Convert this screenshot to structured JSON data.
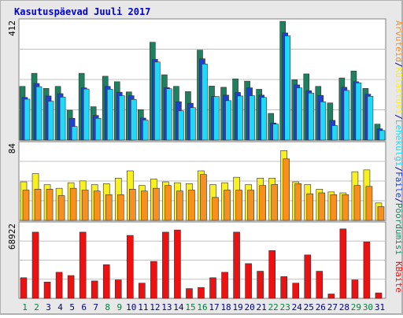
{
  "chart_data": {
    "type": "bar",
    "title": "Kasutuspäevad Juuli 2017",
    "categories": [
      "1",
      "2",
      "3",
      "4",
      "5",
      "6",
      "7",
      "8",
      "9",
      "10",
      "11",
      "12",
      "13",
      "14",
      "15",
      "16",
      "17",
      "18",
      "19",
      "20",
      "21",
      "22",
      "23",
      "24",
      "25",
      "26",
      "27",
      "28",
      "29",
      "30",
      "31"
    ],
    "weekend_days": [
      "1",
      "2",
      "8",
      "9",
      "15",
      "16",
      "22",
      "23",
      "29",
      "30"
    ],
    "panels": [
      {
        "scale_label": "412",
        "ymax": 412,
        "series": [
          {
            "name": "Pöördumisi",
            "color": "#1f7f5f",
            "values": [
              185,
              230,
              178,
              185,
              103,
              230,
              115,
              220,
              201,
              166,
              105,
              337,
              225,
              185,
              167,
              310,
              186,
              182,
              211,
              203,
              175,
              92,
              409,
              208,
              228,
              185,
              128,
              214,
              238,
              178,
              55
            ]
          },
          {
            "name": "Faile",
            "color": "#2040d0",
            "values": [
              147,
              195,
              152,
              160,
              75,
              180,
              85,
              185,
              165,
              153,
              76,
              278,
              181,
              132,
              127,
              280,
              150,
              155,
              164,
              180,
              155,
              59,
              369,
              190,
              170,
              154,
              68,
              182,
              201,
              158,
              39
            ]
          },
          {
            "name": "Lehekülgi",
            "color": "#20d8f8",
            "values": [
              141,
              184,
              134,
              148,
              47,
              176,
              75,
              175,
              153,
              140,
              69,
              269,
              177,
              101,
              112,
              262,
              150,
              136,
              152,
              153,
              147,
              55,
              359,
              180,
              162,
              132,
              50,
              171,
              197,
              151,
              33
            ]
          }
        ]
      },
      {
        "scale_label": "84",
        "ymax": 84,
        "series": [
          {
            "name": "Külastusi",
            "color": "#f8f020",
            "values": [
              42,
              51,
              39,
              35,
              41,
              43,
              39,
              40,
              46,
              54,
              38,
              45,
              42,
              41,
              40,
              54,
              39,
              41,
              47,
              39,
              46,
              46,
              76,
              42,
              39,
              34,
              31,
              30,
              53,
              55,
              19
            ]
          },
          {
            "name": "Arvuteid",
            "color": "#f89020",
            "values": [
              33,
              34,
              34,
              27,
              35,
              33,
              32,
              28,
              28,
              34,
              32,
              35,
              38,
              32,
              33,
              50,
              25,
              33,
              33,
              33,
              38,
              39,
              67,
              40,
              29,
              30,
              28,
              28,
              38,
              37,
              15
            ]
          }
        ]
      },
      {
        "scale_label": "68922",
        "ymax": 68922,
        "series": [
          {
            "name": "KBaite",
            "color": "#ee1111",
            "values": [
              19000,
              61000,
              15000,
              24000,
              21000,
              61000,
              16000,
              31000,
              17000,
              58000,
              14000,
              34000,
              61000,
              63000,
              9000,
              10000,
              19000,
              24000,
              61000,
              32000,
              25000,
              44000,
              20000,
              14000,
              40000,
              25000,
              4000,
              64000,
              17000,
              52000,
              5000
            ]
          }
        ]
      }
    ],
    "legend": [
      {
        "text": "Arvuteid",
        "color": "#f89020"
      },
      {
        "text": "/",
        "color": "#000080"
      },
      {
        "text": "Külastusi",
        "color": "#f8f020"
      },
      {
        "text": "/",
        "color": "#000080"
      },
      {
        "text": "Lehekülgi",
        "color": "#20d8f8"
      },
      {
        "text": "/",
        "color": "#000080"
      },
      {
        "text": "Faile",
        "color": "#2040d0"
      },
      {
        "text": "/",
        "color": "#000080"
      },
      {
        "text": "Pöördumisi",
        "color": "#1f7f5f"
      }
    ],
    "kbytes_label": {
      "text": "KBaite",
      "color": "#ee1111"
    },
    "colors": {
      "background": "#e8e8e8",
      "border": "#b0b0b0",
      "plot_background": "#ffffff",
      "grid": "#c0c0c0",
      "title": "#0000d0",
      "weekday_label": "#000080",
      "weekend_label": "#008040"
    }
  }
}
